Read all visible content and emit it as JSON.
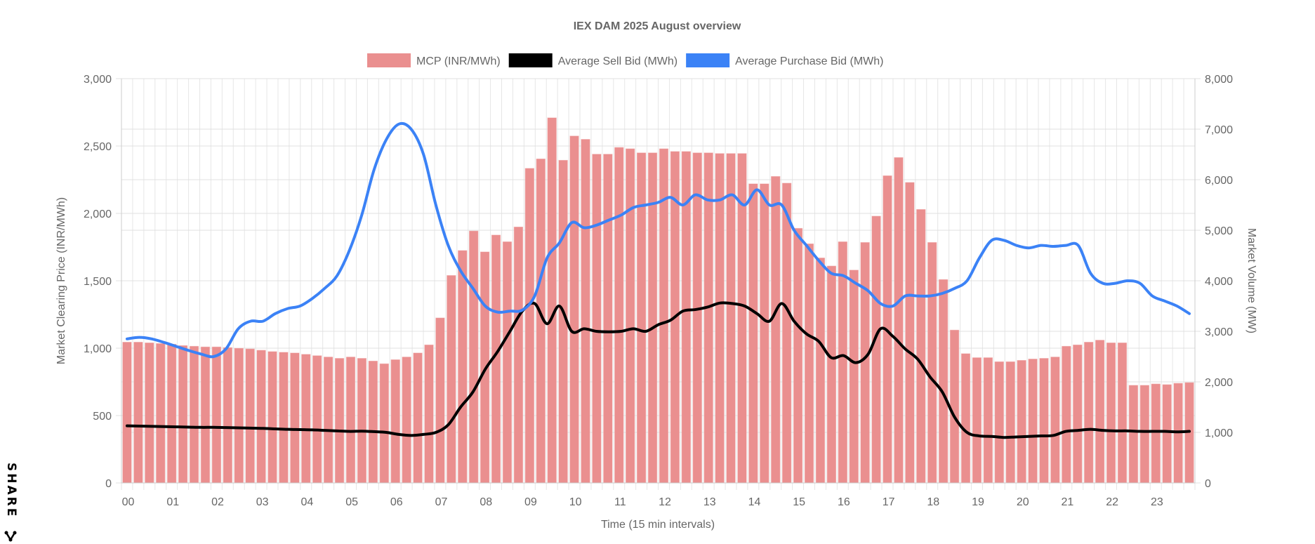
{
  "chart_data": {
    "type": "bar",
    "title": "IEX DAM 2025 August overview",
    "xlabel": "Time (15 min intervals)",
    "ylabel": "Market Clearing Price (INR/MWh)",
    "y2label": "Market Volume (MW)",
    "ylim": [
      0,
      3000
    ],
    "y2lim": [
      0,
      8000
    ],
    "yticks": [
      "0",
      "500",
      "1,000",
      "1,500",
      "2,000",
      "2,500",
      "3,000"
    ],
    "y2ticks": [
      "0",
      "1,000",
      "2,000",
      "3,000",
      "4,000",
      "5,000",
      "6,000",
      "7,000",
      "8,000"
    ],
    "xticks": [
      "00",
      "01",
      "02",
      "03",
      "04",
      "05",
      "06",
      "07",
      "08",
      "09",
      "10",
      "11",
      "12",
      "13",
      "14",
      "15",
      "16",
      "17",
      "18",
      "19",
      "20",
      "21",
      "22",
      "23"
    ],
    "grid": true,
    "legend_position": "top",
    "series": [
      {
        "name": "MCP (INR/MWh)",
        "type": "bar",
        "axis": "left",
        "color": "#ea8f8f",
        "values": [
          1045,
          1045,
          1040,
          1035,
          1030,
          1020,
          1015,
          1010,
          1010,
          1005,
          1000,
          995,
          985,
          975,
          970,
          965,
          955,
          945,
          935,
          925,
          935,
          925,
          905,
          885,
          915,
          935,
          965,
          1025,
          1225,
          1540,
          1725,
          1870,
          1715,
          1840,
          1790,
          1900,
          2335,
          2405,
          2710,
          2395,
          2575,
          2550,
          2440,
          2440,
          2490,
          2480,
          2450,
          2450,
          2480,
          2460,
          2460,
          2450,
          2450,
          2445,
          2445,
          2445,
          2220,
          2220,
          2275,
          2225,
          1890,
          1775,
          1670,
          1610,
          1790,
          1580,
          1785,
          1980,
          2280,
          2415,
          2230,
          2030,
          1785,
          1510,
          1135,
          960,
          930,
          930,
          900,
          900,
          910,
          920,
          925,
          935,
          1015,
          1025,
          1045,
          1060,
          1040,
          1040,
          725,
          725,
          735,
          730,
          740,
          745
        ]
      },
      {
        "name": "Average Sell Bid (MWh)",
        "type": "line",
        "axis": "right",
        "color": "#000000",
        "values": [
          1130,
          1125,
          1120,
          1115,
          1110,
          1105,
          1100,
          1100,
          1095,
          1090,
          1085,
          1080,
          1070,
          1060,
          1055,
          1050,
          1040,
          1030,
          1020,
          1025,
          1015,
          1000,
          960,
          940,
          960,
          1000,
          1150,
          1500,
          1800,
          2250,
          2600,
          3000,
          3400,
          3550,
          3150,
          3500,
          3000,
          3050,
          3000,
          2990,
          3000,
          3050,
          3000,
          3130,
          3220,
          3400,
          3430,
          3480,
          3560,
          3550,
          3500,
          3350,
          3200,
          3550,
          3200,
          2950,
          2800,
          2480,
          2520,
          2380,
          2550,
          3050,
          2900,
          2650,
          2450,
          2100,
          1800,
          1300,
          1000,
          930,
          920,
          900,
          910,
          920,
          930,
          940,
          1020,
          1040,
          1060,
          1040,
          1030,
          1030,
          1020,
          1020,
          1020,
          1010,
          1020
        ]
      },
      {
        "name": "Average Purchase Bid (MWh)",
        "type": "line",
        "axis": "right",
        "color": "#3b82f6",
        "values": [
          2850,
          2880,
          2850,
          2780,
          2700,
          2620,
          2550,
          2500,
          2650,
          3050,
          3200,
          3200,
          3350,
          3450,
          3500,
          3650,
          3850,
          4100,
          4600,
          5300,
          6200,
          6800,
          7100,
          7000,
          6500,
          5500,
          4700,
          4200,
          3850,
          3500,
          3380,
          3400,
          3420,
          3700,
          4450,
          4750,
          5150,
          5050,
          5100,
          5200,
          5300,
          5450,
          5500,
          5550,
          5650,
          5500,
          5700,
          5600,
          5600,
          5700,
          5500,
          5800,
          5500,
          5500,
          5000,
          4700,
          4400,
          4150,
          4100,
          3950,
          3800,
          3550,
          3500,
          3700,
          3700,
          3700,
          3750,
          3850,
          4000,
          4450,
          4800,
          4800,
          4700,
          4650,
          4700,
          4680,
          4700,
          4700,
          4150,
          3950,
          3950,
          4000,
          3950,
          3700,
          3600,
          3500,
          3350
        ]
      }
    ]
  },
  "share": {
    "label": "SHARE"
  }
}
